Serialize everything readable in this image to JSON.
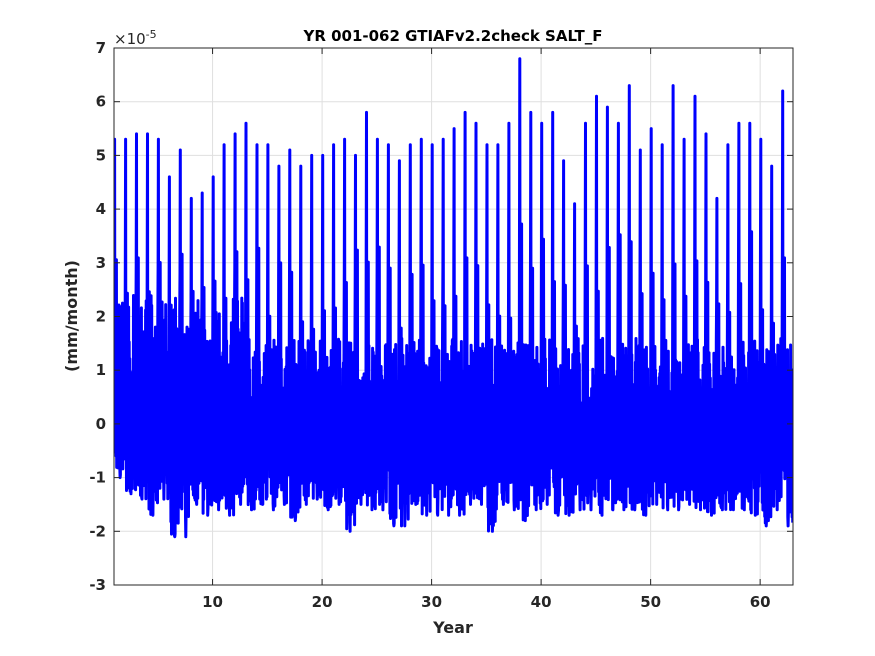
{
  "chart_data": {
    "type": "line",
    "title": "YR 001-062 GTIAFv2.2check SALT_F",
    "xlabel": "Year",
    "ylabel": "(mm/month)",
    "exponent_label": "×10",
    "exponent_power": "-5",
    "xlim": [
      1,
      63
    ],
    "ylim": [
      -3,
      7
    ],
    "y_scale_factor": 1e-05,
    "x_ticks": [
      10,
      20,
      30,
      40,
      50,
      60
    ],
    "x_tick_labels": [
      "10",
      "20",
      "30",
      "40",
      "50",
      "60"
    ],
    "y_ticks": [
      -3,
      -2,
      -1,
      0,
      1,
      2,
      3,
      4,
      5,
      6,
      7
    ],
    "y_tick_labels": [
      "-3",
      "-2",
      "-1",
      "0",
      "1",
      "2",
      "3",
      "4",
      "5",
      "6",
      "7"
    ],
    "grid": true,
    "line_color": "#0000ff",
    "series": [
      {
        "x_start": 1,
        "annual_max": [
          5.3,
          5.3,
          5.4,
          5.4,
          5.3,
          4.6,
          5.1,
          4.2,
          4.3,
          4.6,
          5.2,
          5.4,
          5.6,
          5.2,
          5.2,
          4.8,
          5.1,
          4.8,
          5.0,
          5.0,
          5.2,
          5.3,
          5.0,
          5.8,
          5.3,
          5.2,
          4.9,
          5.2,
          5.3,
          5.2,
          5.3,
          5.5,
          5.8,
          5.6,
          5.2,
          5.2,
          5.6,
          6.8,
          5.8,
          5.6,
          5.8,
          4.9,
          4.1,
          5.6,
          6.1,
          5.9,
          5.6,
          6.3,
          5.1,
          5.5,
          5.2,
          6.3,
          5.3,
          6.1,
          5.4,
          4.2,
          5.2,
          5.6,
          5.6,
          5.3,
          4.8,
          6.2
        ],
        "annual_min": [
          -1.0,
          -1.3,
          -1.4,
          -1.7,
          -1.4,
          -2.1,
          -2.1,
          -1.5,
          -1.7,
          -1.6,
          -1.7,
          -1.5,
          -1.6,
          -1.5,
          -1.6,
          -1.5,
          -1.8,
          -1.5,
          -1.4,
          -1.6,
          -1.5,
          -2.0,
          -1.5,
          -1.6,
          -1.6,
          -1.9,
          -1.9,
          -1.5,
          -1.7,
          -1.7,
          -1.7,
          -1.7,
          -1.5,
          -1.5,
          -2.0,
          -1.5,
          -1.6,
          -1.8,
          -1.6,
          -1.5,
          -1.7,
          -1.7,
          -1.6,
          -1.6,
          -1.7,
          -1.6,
          -1.6,
          -1.6,
          -1.7,
          -1.5,
          -1.6,
          -1.6,
          -1.5,
          -1.6,
          -1.7,
          -1.6,
          -1.6,
          -1.6,
          -1.7,
          -1.9,
          -1.6,
          -1.9
        ]
      }
    ]
  }
}
